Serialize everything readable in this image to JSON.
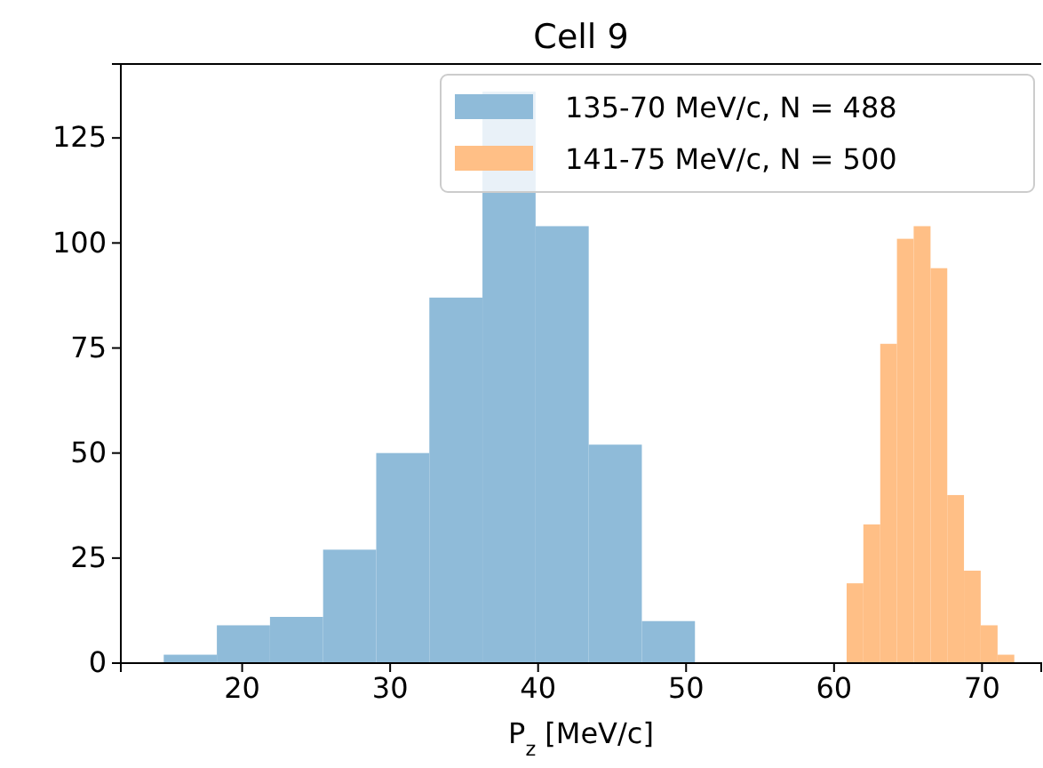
{
  "chart_data": {
    "type": "histogram",
    "title": "Cell 9",
    "xlabel": "P$_{z}$ [MeV/c]",
    "xlim": [
      11.8,
      74
    ],
    "xticks": [
      20,
      30,
      40,
      50,
      60,
      70
    ],
    "ylim": [
      0,
      142.6
    ],
    "yticks": [
      0,
      25,
      50,
      75,
      100,
      125
    ],
    "legend": "top right",
    "bins": [
      14.7,
      18.29,
      21.88,
      25.47,
      29.06,
      32.65,
      36.24,
      39.83,
      43.42,
      47.01,
      50.6,
      60.85,
      61.98,
      63.12,
      64.25,
      65.38,
      66.52,
      67.65,
      68.78,
      69.91,
      71.05,
      72.18
    ],
    "series": [
      {
        "name": "135-70 MeV/c, N = 488",
        "color": "#8fbbd9",
        "values": [
          2,
          9,
          11,
          27,
          50,
          87,
          136,
          104,
          52,
          10,
          null,
          null,
          null,
          null,
          null,
          null,
          null,
          null,
          null,
          null,
          null
        ]
      },
      {
        "name": "141-75 MeV/c, N = 500",
        "color": "#ffbf86",
        "values": [
          null,
          null,
          null,
          null,
          null,
          null,
          null,
          null,
          null,
          null,
          null,
          19,
          33,
          76,
          101,
          104,
          94,
          40,
          22,
          9,
          2
        ]
      }
    ]
  }
}
